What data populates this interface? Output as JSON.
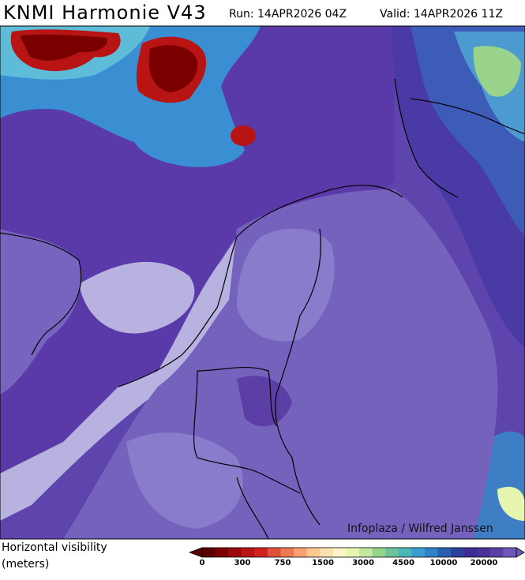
{
  "header": {
    "title": "KNMI Harmonie V43",
    "run": "Run: 14APR2026 04Z",
    "valid": "Valid: 14APR2026 11Z"
  },
  "map": {
    "credit": "Infoplaza / Wilfred Janssen"
  },
  "legend": {
    "label_line1": "Horizontal visibility",
    "label_line2": "(meters)",
    "colors": [
      "#5a0000",
      "#7a0000",
      "#9a0a0a",
      "#b81414",
      "#d02020",
      "#e0503a",
      "#ee7a50",
      "#f8a070",
      "#fcc890",
      "#fde2b0",
      "#fff4c8",
      "#e6f5b0",
      "#c4e7a0",
      "#96d48c",
      "#6ec49a",
      "#4cb6b8",
      "#3a9fd0",
      "#2e82c8",
      "#2a5fb0",
      "#2c3f9c",
      "#3a2e92",
      "#4a3298",
      "#5c3ea8",
      "#7058b8"
    ],
    "labels": [
      "0",
      "300",
      "750",
      "1500",
      "3000",
      "4500",
      "10000",
      "20000"
    ]
  }
}
